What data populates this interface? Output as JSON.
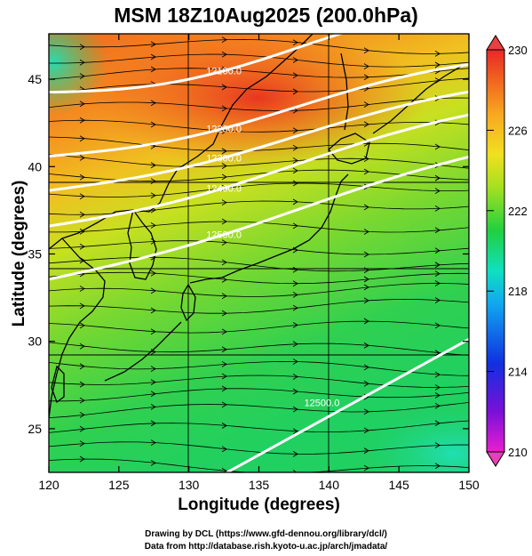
{
  "title": "MSM 18Z10Aug2025 (200.0hPa)",
  "x_axis": {
    "label": "Longitude (degrees)",
    "ticks": [
      120,
      125,
      130,
      135,
      140,
      145,
      150
    ],
    "range": [
      120,
      150
    ]
  },
  "y_axis": {
    "label": "Latitude  (degrees)",
    "ticks": [
      25,
      30,
      35,
      40,
      45
    ],
    "range": [
      22.5,
      47.6
    ]
  },
  "colorbar": {
    "ticks": [
      210,
      214,
      218,
      222,
      226,
      230
    ],
    "range": [
      210,
      230
    ],
    "colors": [
      "#e81fd0",
      "#7a10d8",
      "#1030e0",
      "#10a8f0",
      "#10e0c0",
      "#20d040",
      "#a8e020",
      "#f0e020",
      "#f8a820",
      "#f06020",
      "#e82828"
    ]
  },
  "contours": [
    {
      "label": "12100.0",
      "lat_at_130": 45.7
    },
    {
      "label": "12200.0",
      "lat_at_130": 42.2
    },
    {
      "label": "12300.0",
      "lat_at_130": 40.4
    },
    {
      "label": "12400.0",
      "lat_at_130": 38.6
    },
    {
      "label": "12500.0",
      "lat_at_130": 35.8
    },
    {
      "label": "12500.0",
      "lat_at_130": 23.5
    }
  ],
  "credits": {
    "line1": "Drawing by DCL (https://www.gfd-dennou.org/library/dcl/)",
    "line2": "Data from http://database.rish.kyoto-u.ac.jp/arch/jmadata/"
  }
}
